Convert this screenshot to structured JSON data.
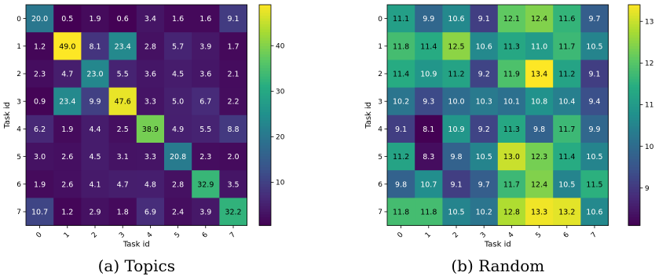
{
  "chart_data": [
    {
      "type": "heatmap",
      "caption": "(a) Topics",
      "xlabel": "Task id",
      "ylabel": "Task id",
      "x_ticks": [
        "0",
        "1",
        "2",
        "3",
        "4",
        "5",
        "6",
        "7"
      ],
      "y_ticks": [
        "0",
        "1",
        "2",
        "3",
        "4",
        "5",
        "6",
        "7"
      ],
      "values": [
        [
          20.0,
          0.5,
          1.9,
          0.6,
          3.4,
          1.6,
          1.6,
          9.1
        ],
        [
          1.2,
          49.0,
          8.1,
          23.4,
          2.8,
          5.7,
          3.9,
          1.7
        ],
        [
          2.3,
          4.7,
          23.0,
          5.5,
          3.6,
          4.5,
          3.6,
          2.1
        ],
        [
          0.9,
          23.4,
          9.9,
          47.6,
          3.3,
          5.0,
          6.7,
          2.2
        ],
        [
          6.2,
          1.9,
          4.4,
          2.5,
          38.9,
          4.9,
          5.5,
          8.8
        ],
        [
          3.0,
          2.6,
          4.5,
          3.1,
          3.3,
          20.8,
          2.3,
          2.0
        ],
        [
          1.9,
          2.6,
          4.1,
          4.7,
          4.8,
          2.8,
          32.9,
          3.5
        ],
        [
          10.7,
          1.2,
          2.9,
          1.8,
          6.9,
          2.4,
          3.9,
          32.2
        ]
      ],
      "colormap": "viridis",
      "vmin": 0.5,
      "vmax": 49.0,
      "colorbar_ticks": [
        10,
        20,
        30,
        40
      ]
    },
    {
      "type": "heatmap",
      "caption": "(b) Random",
      "xlabel": "Task id",
      "ylabel": "Task id",
      "x_ticks": [
        "0",
        "1",
        "2",
        "3",
        "4",
        "5",
        "6",
        "7"
      ],
      "y_ticks": [
        "0",
        "1",
        "2",
        "3",
        "4",
        "5",
        "6",
        "7"
      ],
      "values": [
        [
          11.1,
          9.9,
          10.6,
          9.1,
          12.1,
          12.4,
          11.6,
          9.7
        ],
        [
          11.8,
          11.4,
          12.5,
          10.6,
          11.3,
          11.0,
          11.7,
          10.5
        ],
        [
          11.4,
          10.9,
          11.2,
          9.2,
          11.9,
          13.4,
          11.2,
          9.1
        ],
        [
          10.2,
          9.3,
          10.0,
          10.3,
          10.1,
          10.8,
          10.4,
          9.4
        ],
        [
          9.1,
          8.1,
          10.9,
          9.2,
          11.3,
          9.8,
          11.7,
          9.9
        ],
        [
          11.2,
          8.3,
          9.8,
          10.5,
          13.0,
          12.3,
          11.4,
          10.5
        ],
        [
          9.8,
          10.7,
          9.1,
          9.7,
          11.7,
          12.4,
          10.5,
          11.5
        ],
        [
          11.8,
          11.8,
          10.5,
          10.2,
          12.8,
          13.3,
          13.2,
          10.6
        ]
      ],
      "colormap": "viridis",
      "vmin": 8.1,
      "vmax": 13.4,
      "colorbar_ticks": [
        9,
        10,
        11,
        12,
        13
      ]
    }
  ]
}
